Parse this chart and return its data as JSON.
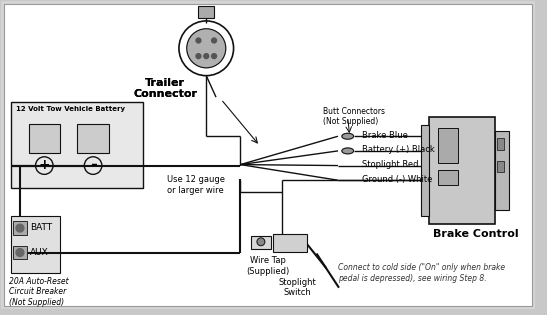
{
  "bg_color": "#c8c8c8",
  "inner_bg": "#d8d8d8",
  "line_color": "#111111",
  "labels": {
    "trailer_connector": "Trailer\nConnector",
    "butt_connectors": "Butt Connectors\n(Not Supplied)",
    "brake_blue": "Brake Blue",
    "battery_black": "Battery (+) Black",
    "stoplight_red": "Stoplight Red",
    "ground_white": "Ground (-) White",
    "brake_control": "Brake Control",
    "battery_label": "12 Volt Tow Vehicle Battery",
    "use_gauge": "Use 12 gauge\nor larger wire",
    "batt": "BATT",
    "aux": "AUX",
    "circuit_breaker": "20A Auto-Reset\nCircuit Breaker\n(Not Supplied)",
    "wire_tap": "Wire Tap\n(Supplied)",
    "stoplight_switch": "Stoplight\nSwitch",
    "cold_side": "Connect to cold side (\"On\" only when brake\npedal is depressed), see wiring Step 8."
  }
}
